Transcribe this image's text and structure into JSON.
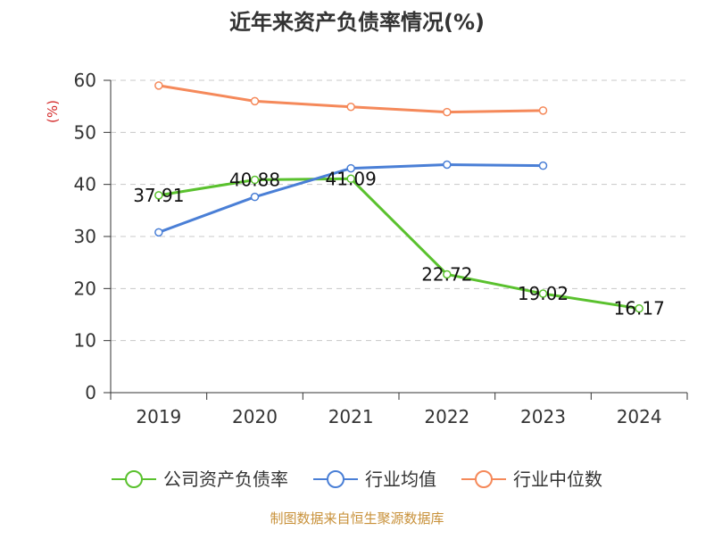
{
  "chart_data": {
    "type": "line",
    "title": "近年来资产负债率情况(%)",
    "ylabel": "(%)",
    "xlabel": "",
    "categories": [
      "2019",
      "2020",
      "2021",
      "2022",
      "2023",
      "2024"
    ],
    "ylim": [
      0,
      60
    ],
    "yticks": [
      0,
      10,
      20,
      30,
      40,
      50,
      60
    ],
    "yticklabels": [
      "0",
      "10",
      "20",
      "30",
      "40",
      "50",
      "60"
    ],
    "grid": true,
    "legend_position": "bottom",
    "series": [
      {
        "name": "公司资产负债率",
        "color": "#5ac12e",
        "values": [
          37.91,
          40.88,
          41.09,
          22.72,
          19.02,
          16.17
        ],
        "labels": [
          "37.91",
          "40.88",
          "41.09",
          "22.72",
          "19.02",
          "16.17"
        ]
      },
      {
        "name": "行业均值",
        "color": "#4a7fd6",
        "values": [
          30.8,
          37.6,
          43.1,
          43.8,
          43.6,
          null
        ]
      },
      {
        "name": "行业中位数",
        "color": "#f5895a",
        "values": [
          59.0,
          56.0,
          54.9,
          53.9,
          54.2,
          null
        ]
      }
    ]
  },
  "footer": {
    "source": "制图数据来自恒生聚源数据库"
  }
}
